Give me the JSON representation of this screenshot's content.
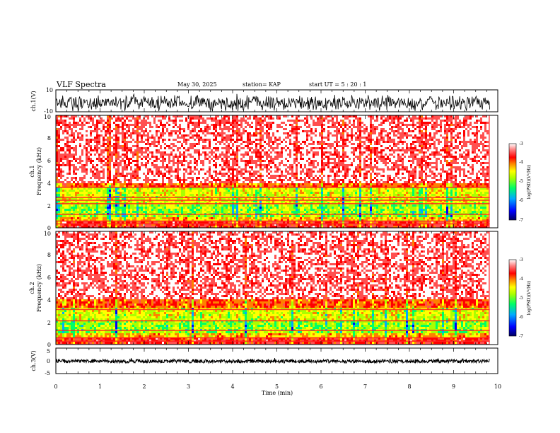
{
  "header": {
    "title": "VLF Spectra",
    "date": "May 30, 2025",
    "station": "station= KAP",
    "start": "start  UT =   5 : 20 : 1"
  },
  "chart_data": [
    {
      "type": "line",
      "name": "ch1-waveform",
      "ylabel": "ch.1(V)",
      "ylim": [
        -10,
        10
      ],
      "yticks": [
        {
          "label": "10",
          "value": 10
        },
        {
          "label": "-10",
          "value": -10
        }
      ],
      "x_range_min": [
        0,
        9.82
      ],
      "description_color": "#000000"
    },
    {
      "type": "heatmap",
      "name": "ch1-spectrogram",
      "ylabel": [
        "ch.1",
        "Frequency (kHz)"
      ],
      "xlim_min": [
        0,
        10
      ],
      "ylim_khz": [
        0,
        10
      ],
      "yticks": [
        "0",
        "2",
        "4",
        "6",
        "8",
        "10"
      ],
      "colorbar": {
        "label": "log(PSD)(V²/Hz)",
        "range": [
          -7,
          -3
        ],
        "ticks": [
          "-3",
          "-4",
          "-5",
          "-6",
          "-7"
        ]
      }
    },
    {
      "type": "heatmap",
      "name": "ch2-spectrogram",
      "ylabel": [
        "ch.2",
        "Frequency (kHz)"
      ],
      "xlim_min": [
        0,
        10
      ],
      "ylim_khz": [
        0,
        10
      ],
      "yticks": [
        "0",
        "2",
        "4",
        "6",
        "8",
        "10"
      ],
      "colorbar": {
        "label": "log(PSD)(V²/Hz)",
        "range": [
          -7,
          -3
        ],
        "ticks": [
          "-3",
          "-4",
          "-5",
          "-6",
          "-7"
        ]
      }
    },
    {
      "type": "line",
      "name": "ch3-waveform",
      "ylabel": "ch.3(V)",
      "ylim": [
        -5,
        5
      ],
      "yticks": [
        {
          "label": "5",
          "value": 5
        },
        {
          "label": "0",
          "value": 0
        },
        {
          "label": "-5",
          "value": -5
        }
      ],
      "x_range_min": [
        0,
        9.82
      ]
    }
  ],
  "xaxis": {
    "label": "Time (min)",
    "range": [
      0,
      10
    ],
    "ticks": [
      "0",
      "1",
      "2",
      "3",
      "4",
      "5",
      "6",
      "7",
      "8",
      "9",
      "10"
    ]
  },
  "colors": {
    "cmap": [
      "#000080",
      "#0000ff",
      "#00aaff",
      "#00ff66",
      "#aaff00",
      "#ffff00",
      "#ff8000",
      "#ff0000",
      "#ff5050",
      "#ffffff"
    ],
    "trace": "#000000"
  }
}
